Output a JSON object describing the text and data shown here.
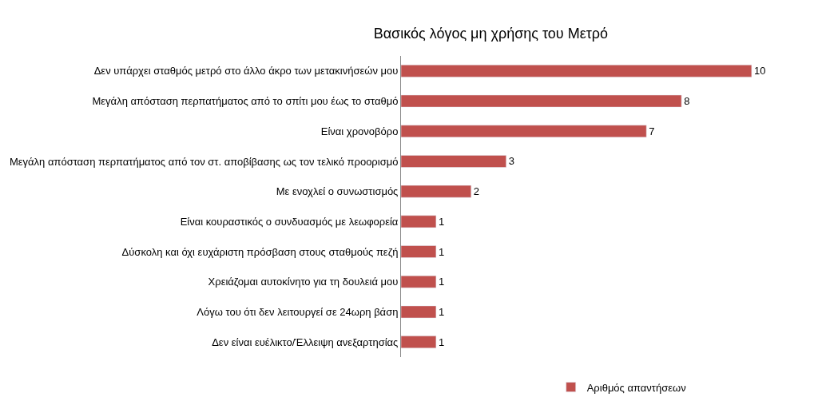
{
  "chart_data": {
    "type": "bar",
    "orientation": "horizontal",
    "title": "Βασικός λόγος μη χρήσης του Μετρό",
    "categories": [
      "Δεν υπάρχει σταθμός μετρό στο άλλο άκρο των μετακινήσεών μου",
      "Μεγάλη απόσταση περπατήματος από το σπίτι μου έως το σταθμό",
      "Είναι χρονοβόρο",
      "Μεγάλη απόσταση περπατήματος από τον στ. αποβίβασης ως τον τελικό προορισμό",
      "Με ενοχλεί ο συνωστισμός",
      "Είναι κουραστικός ο συνδυασμός με λεωφορεία",
      "Δύσκολη και όχι ευχάριστη πρόσβαση στους σταθμούς πεζή",
      "Χρειάζομαι αυτοκίνητο για τη δουλειά μου",
      "Λόγω του ότι δεν λειτουργεί σε 24ωρη βάση",
      "Δεν είναι ευέλικτο/Έλλειψη ανεξαρτησίας"
    ],
    "series": [
      {
        "name": "Αριθμός απαντήσεων",
        "color": "#c0504d",
        "values": [
          10,
          8,
          7,
          3,
          2,
          1,
          1,
          1,
          1,
          1
        ]
      }
    ],
    "data_labels": true,
    "legend": "bottom"
  }
}
